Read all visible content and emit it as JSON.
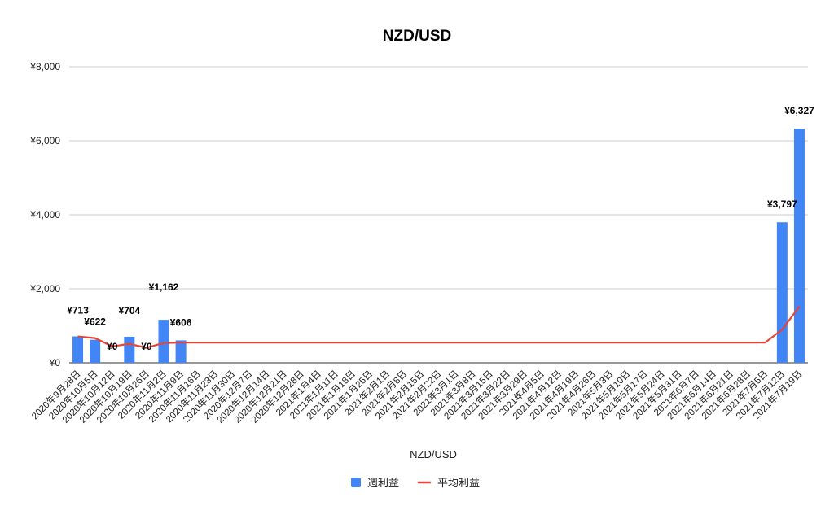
{
  "chart_data": {
    "type": "bar",
    "title": "NZD/USD",
    "xlabel": "NZD/USD",
    "ylabel": "",
    "ylim": [
      0,
      8000
    ],
    "yticks": [
      "¥0",
      "¥2,000",
      "¥4,000",
      "¥6,000",
      "¥8,000"
    ],
    "ytick_values": [
      0,
      2000,
      4000,
      6000,
      8000
    ],
    "grid": true,
    "legend_position": "bottom",
    "categories": [
      "2020年9月28日",
      "2020年10月5日",
      "2020年10月12日",
      "2020年10月19日",
      "2020年10月26日",
      "2020年11月2日",
      "2020年11月9日",
      "2020年11月16日",
      "2020年11月23日",
      "2020年11月30日",
      "2020年12月7日",
      "2020年12月14日",
      "2020年12月21日",
      "2020年12月28日",
      "2021年1月4日",
      "2021年1月11日",
      "2021年1月18日",
      "2021年1月25日",
      "2021年2月1日",
      "2021年2月8日",
      "2021年2月15日",
      "2021年2月22日",
      "2021年3月1日",
      "2021年3月8日",
      "2021年3月15日",
      "2021年3月22日",
      "2021年3月29日",
      "2021年4月5日",
      "2021年4月12日",
      "2021年4月19日",
      "2021年4月26日",
      "2021年5月3日",
      "2021年5月10日",
      "2021年5月17日",
      "2021年5月24日",
      "2021年5月31日",
      "2021年6月7日",
      "2021年6月14日",
      "2021年6月21日",
      "2021年6月28日",
      "2021年7月5日",
      "2021年7月12日",
      "2021年7月19日"
    ],
    "series": [
      {
        "name": "週利益",
        "kind": "bar",
        "color": "#4285f4",
        "values": [
          713,
          622,
          0,
          704,
          0,
          1162,
          606,
          null,
          null,
          null,
          null,
          null,
          null,
          null,
          null,
          null,
          null,
          null,
          null,
          null,
          null,
          null,
          null,
          null,
          null,
          null,
          null,
          null,
          null,
          null,
          null,
          null,
          null,
          null,
          null,
          null,
          null,
          null,
          null,
          null,
          null,
          3797,
          6327
        ],
        "data_labels": [
          "¥713",
          "¥622",
          "¥0",
          "¥704",
          "¥0",
          "¥1,162",
          "¥606",
          null,
          null,
          null,
          null,
          null,
          null,
          null,
          null,
          null,
          null,
          null,
          null,
          null,
          null,
          null,
          null,
          null,
          null,
          null,
          null,
          null,
          null,
          null,
          null,
          null,
          null,
          null,
          null,
          null,
          null,
          null,
          null,
          null,
          null,
          "¥3,797",
          "¥6,327"
        ]
      },
      {
        "name": "平均利益",
        "kind": "line",
        "color": "#ea4335",
        "values": [
          713,
          668,
          445,
          510,
          408,
          533,
          544,
          544,
          544,
          544,
          544,
          544,
          544,
          544,
          544,
          544,
          544,
          544,
          544,
          544,
          544,
          544,
          544,
          544,
          544,
          544,
          544,
          544,
          544,
          544,
          544,
          544,
          544,
          544,
          544,
          544,
          544,
          544,
          544,
          544,
          544,
          898,
          1521
        ]
      }
    ]
  }
}
